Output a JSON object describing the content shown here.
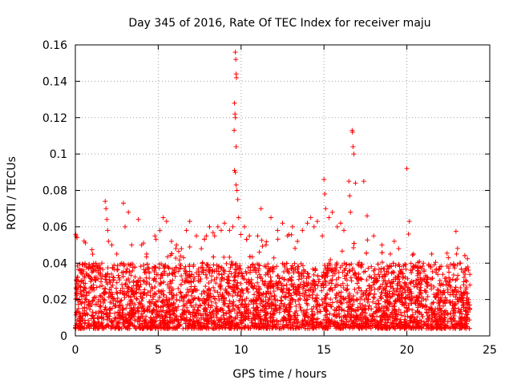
{
  "chart_data": {
    "type": "scatter",
    "title": "Day 345 of 2016, Rate Of TEC Index for receiver maju",
    "xlabel": "GPS time / hours",
    "ylabel": "ROTI / TECUs",
    "xlim": [
      0,
      25
    ],
    "ylim": [
      0,
      0.16
    ],
    "grid": true,
    "marker": "+",
    "color": "#ff0000",
    "x_ticks": [
      0,
      5,
      10,
      15,
      20,
      25
    ],
    "x_tick_labels": [
      "0",
      "5",
      "10",
      "15",
      "20",
      "25"
    ],
    "y_ticks": [
      0,
      0.02,
      0.04,
      0.06,
      0.08,
      0.1,
      0.12,
      0.14,
      0.16
    ],
    "y_tick_labels": [
      "0",
      "0.02",
      "0.04",
      "0.06",
      "0.08",
      "0.1",
      "0.12",
      "0.14",
      "0.16"
    ],
    "series": [
      {
        "name": "ROTI",
        "points": [
          [
            0.05,
            0.055
          ],
          [
            0.1,
            0.054
          ],
          [
            0.2,
            0.03
          ],
          [
            0.3,
            0.036
          ],
          [
            0.5,
            0.029
          ],
          [
            0.8,
            0.033
          ],
          [
            1.0,
            0.035
          ],
          [
            1.3,
            0.038
          ],
          [
            1.6,
            0.04
          ],
          [
            1.8,
            0.074
          ],
          [
            1.85,
            0.07
          ],
          [
            1.9,
            0.064
          ],
          [
            1.95,
            0.058
          ],
          [
            2.0,
            0.052
          ],
          [
            2.2,
            0.05
          ],
          [
            2.5,
            0.045
          ],
          [
            2.9,
            0.073
          ],
          [
            3.0,
            0.06
          ],
          [
            3.2,
            0.068
          ],
          [
            3.4,
            0.05
          ],
          [
            3.8,
            0.064
          ],
          [
            4.0,
            0.05
          ],
          [
            4.3,
            0.045
          ],
          [
            4.8,
            0.055
          ],
          [
            5.1,
            0.058
          ],
          [
            5.3,
            0.065
          ],
          [
            5.5,
            0.063
          ],
          [
            5.8,
            0.052
          ],
          [
            6.1,
            0.05
          ],
          [
            6.4,
            0.048
          ],
          [
            6.7,
            0.058
          ],
          [
            6.9,
            0.063
          ],
          [
            7.3,
            0.055
          ],
          [
            7.6,
            0.048
          ],
          [
            7.9,
            0.055
          ],
          [
            8.1,
            0.06
          ],
          [
            8.4,
            0.055
          ],
          [
            8.6,
            0.06
          ],
          [
            8.8,
            0.058
          ],
          [
            9.0,
            0.062
          ],
          [
            9.3,
            0.058
          ],
          [
            9.5,
            0.06
          ],
          [
            9.65,
            0.156
          ],
          [
            9.68,
            0.152
          ],
          [
            9.7,
            0.144
          ],
          [
            9.72,
            0.142
          ],
          [
            9.6,
            0.128
          ],
          [
            9.63,
            0.122
          ],
          [
            9.66,
            0.12
          ],
          [
            9.58,
            0.113
          ],
          [
            9.7,
            0.104
          ],
          [
            9.6,
            0.091
          ],
          [
            9.65,
            0.09
          ],
          [
            9.7,
            0.083
          ],
          [
            9.75,
            0.08
          ],
          [
            9.8,
            0.075
          ],
          [
            9.85,
            0.065
          ],
          [
            10.2,
            0.06
          ],
          [
            10.5,
            0.055
          ],
          [
            11.2,
            0.07
          ],
          [
            11.0,
            0.055
          ],
          [
            11.5,
            0.05
          ],
          [
            11.8,
            0.065
          ],
          [
            12.2,
            0.058
          ],
          [
            12.5,
            0.062
          ],
          [
            12.8,
            0.055
          ],
          [
            13.1,
            0.06
          ],
          [
            13.4,
            0.052
          ],
          [
            13.7,
            0.058
          ],
          [
            14.0,
            0.062
          ],
          [
            14.2,
            0.065
          ],
          [
            14.4,
            0.06
          ],
          [
            14.6,
            0.063
          ],
          [
            14.9,
            0.055
          ],
          [
            15.0,
            0.086
          ],
          [
            15.05,
            0.078
          ],
          [
            15.1,
            0.07
          ],
          [
            15.3,
            0.065
          ],
          [
            15.5,
            0.068
          ],
          [
            15.8,
            0.06
          ],
          [
            16.0,
            0.062
          ],
          [
            16.2,
            0.058
          ],
          [
            16.5,
            0.085
          ],
          [
            16.55,
            0.077
          ],
          [
            16.6,
            0.068
          ],
          [
            16.7,
            0.113
          ],
          [
            16.72,
            0.112
          ],
          [
            16.75,
            0.104
          ],
          [
            16.8,
            0.1
          ],
          [
            16.9,
            0.084
          ],
          [
            17.4,
            0.085
          ],
          [
            17.6,
            0.066
          ],
          [
            18.0,
            0.055
          ],
          [
            18.5,
            0.05
          ],
          [
            19.0,
            0.045
          ],
          [
            19.5,
            0.048
          ],
          [
            20.0,
            0.092
          ],
          [
            20.15,
            0.063
          ],
          [
            20.1,
            0.056
          ],
          [
            20.4,
            0.045
          ],
          [
            21.0,
            0.04
          ],
          [
            21.5,
            0.045
          ],
          [
            22.0,
            0.038
          ],
          [
            22.5,
            0.043
          ],
          [
            23.0,
            0.045
          ],
          [
            23.2,
            0.04
          ],
          [
            23.4,
            0.035
          ],
          [
            23.6,
            0.03
          ],
          [
            23.8,
            0.028
          ]
        ]
      }
    ],
    "dense_band": {
      "description_range_x": [
        0,
        23.8
      ],
      "typical_y_range": [
        0.004,
        0.04
      ]
    }
  }
}
